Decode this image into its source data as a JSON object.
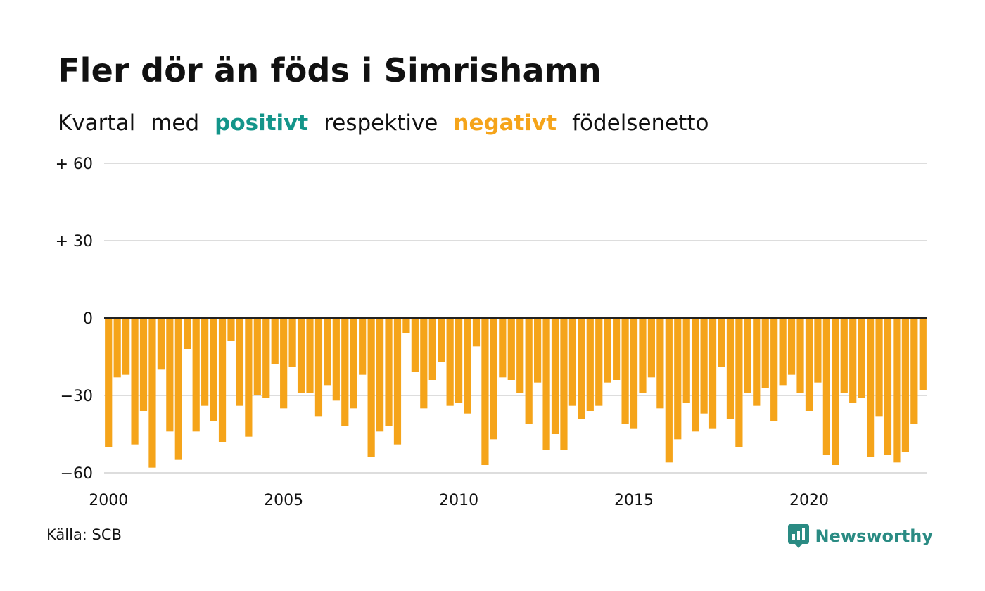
{
  "title": "Fler dör än föds i Simrishamn",
  "subtitle": {
    "parts": [
      "Kvartal",
      "med",
      "positivt",
      "respektive",
      "negativt",
      "födelsenetto"
    ]
  },
  "source": "Källa: SCB",
  "brand": {
    "name": "Newsworthy",
    "icon": "newsworthy-logo-icon"
  },
  "colors": {
    "positive": "#13958a",
    "negative": "#f5a41a",
    "grid": "#dddddd",
    "zero_line": "#222222"
  },
  "chart_data": {
    "type": "bar",
    "title": "Fler dör än föds i Simrishamn",
    "xlabel": "",
    "ylabel": "",
    "ylim": [
      -60,
      60
    ],
    "yticks": [
      60,
      30,
      0,
      -30,
      -60
    ],
    "ytick_labels": [
      "+ 60",
      "+ 30",
      "0",
      "−30",
      "−60"
    ],
    "xticks": [
      "2000",
      "2005",
      "2010",
      "2015",
      "2020"
    ],
    "grid": true,
    "start": "2000 Q1",
    "frequency": "quarter",
    "values": [
      -50,
      -23,
      -22,
      -49,
      -36,
      -58,
      -20,
      -44,
      -55,
      -12,
      -44,
      -34,
      -40,
      -48,
      -9,
      -34,
      -46,
      -30,
      -31,
      -18,
      -35,
      -19,
      -29,
      -29,
      -38,
      -26,
      -32,
      -42,
      -35,
      -22,
      -54,
      -44,
      -42,
      -49,
      -6,
      -21,
      -35,
      -24,
      -17,
      -34,
      -33,
      -37,
      -11,
      -57,
      -47,
      -23,
      -24,
      -29,
      -41,
      -25,
      -51,
      -45,
      -51,
      -34,
      -39,
      -36,
      -34,
      -25,
      -24,
      -41,
      -43,
      -29,
      -23,
      -35,
      -56,
      -47,
      -33,
      -44,
      -37,
      -43,
      -19,
      -39,
      -50,
      -29,
      -34,
      -27,
      -40,
      -26,
      -22,
      -29,
      -36,
      -25,
      -53,
      -57,
      -29,
      -33,
      -31,
      -54,
      -38,
      -53,
      -56,
      -52,
      -41,
      -28
    ]
  }
}
